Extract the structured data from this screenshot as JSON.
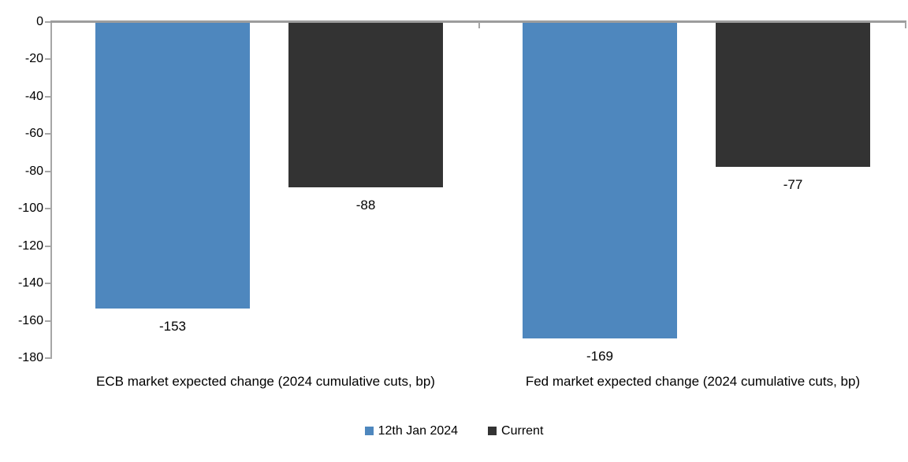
{
  "chart_data": {
    "type": "bar",
    "title": "",
    "categories": [
      "ECB market expected change (2024 cumulative cuts, bp)",
      "Fed market expected change (2024 cumulative cuts, bp)"
    ],
    "series": [
      {
        "name": "12th Jan 2024",
        "color": "#4E87BE",
        "values": [
          -153,
          -169
        ]
      },
      {
        "name": "Current",
        "color": "#333333",
        "values": [
          -88,
          -77
        ]
      }
    ],
    "xlabel": "",
    "ylabel": "",
    "ylim": [
      -180,
      0
    ],
    "yticks": [
      0,
      -20,
      -40,
      -60,
      -80,
      -100,
      -120,
      -140,
      -160,
      -180
    ],
    "grid": false,
    "data_labels": true,
    "data_label_position": "outside-end",
    "legend_position": "bottom",
    "axis_color": "#A6A6A6",
    "text_color": "#000000",
    "background_color": "#FFFFFF"
  }
}
